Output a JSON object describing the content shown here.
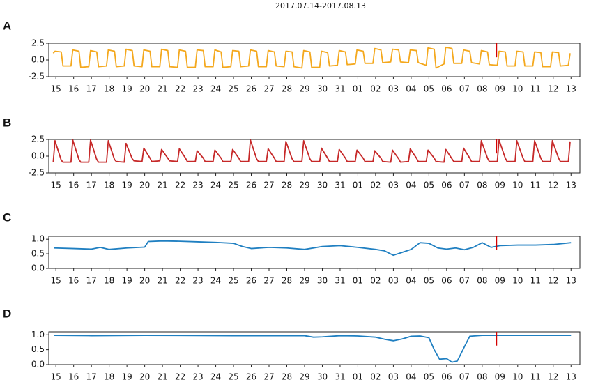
{
  "chart_data": [
    {
      "type": "line",
      "title": "2017.07.14-2017.08.13",
      "label": "A",
      "color": "#f4a81d",
      "marker_x": 24.8,
      "marker_color": "#d40000",
      "xlim": [
        -0.4,
        29.5
      ],
      "ylim": [
        -2.5,
        2.5
      ],
      "yticks": [
        2.5,
        {
          "value": 0,
          "label": "0.0"
        },
        -2.5
      ],
      "xticks": [
        {
          "value": 0,
          "label": "15"
        },
        {
          "value": 1,
          "label": "16"
        },
        {
          "value": 2,
          "label": "17"
        },
        {
          "value": 3,
          "label": "18"
        },
        {
          "value": 4,
          "label": "19"
        },
        {
          "value": 5,
          "label": "20"
        },
        {
          "value": 6,
          "label": "21"
        },
        {
          "value": 7,
          "label": "22"
        },
        {
          "value": 8,
          "label": "23"
        },
        {
          "value": 9,
          "label": "24"
        },
        {
          "value": 10,
          "label": "25"
        },
        {
          "value": 11,
          "label": "26"
        },
        {
          "value": 12,
          "label": "27"
        },
        {
          "value": 13,
          "label": "28"
        },
        {
          "value": 14,
          "label": "29"
        },
        {
          "value": 15,
          "label": "30"
        },
        {
          "value": 16,
          "label": "31"
        },
        {
          "value": 17,
          "label": "01"
        },
        {
          "value": 18,
          "label": "02"
        },
        {
          "value": 19,
          "label": "03"
        },
        {
          "value": 20,
          "label": "04"
        },
        {
          "value": 21,
          "label": "05"
        },
        {
          "value": 22,
          "label": "06"
        },
        {
          "value": 23,
          "label": "07"
        },
        {
          "value": 24,
          "label": "08"
        },
        {
          "value": 25,
          "label": "09"
        },
        {
          "value": 26,
          "label": "10"
        },
        {
          "value": 27,
          "label": "11"
        },
        {
          "value": 28,
          "label": "12"
        },
        {
          "value": 29,
          "label": "13"
        }
      ],
      "x": [
        -0.15,
        -0.05,
        0.3,
        0.4,
        0.85,
        0.95,
        1.3,
        1.4,
        1.85,
        1.95,
        2.3,
        2.4,
        2.85,
        2.95,
        3.3,
        3.4,
        3.85,
        3.95,
        4.3,
        4.4,
        4.85,
        4.95,
        5.3,
        5.4,
        5.85,
        5.95,
        6.3,
        6.4,
        6.85,
        6.95,
        7.3,
        7.4,
        7.85,
        7.95,
        8.3,
        8.4,
        8.85,
        8.95,
        9.3,
        9.4,
        9.85,
        9.95,
        10.3,
        10.4,
        10.85,
        10.95,
        11.3,
        11.4,
        11.85,
        11.95,
        12.3,
        12.4,
        12.85,
        12.95,
        13.3,
        13.4,
        13.85,
        13.95,
        14.3,
        14.4,
        14.85,
        14.95,
        15.3,
        15.4,
        15.85,
        15.95,
        16.3,
        16.4,
        16.85,
        16.95,
        17.3,
        17.4,
        17.85,
        17.95,
        18.3,
        18.4,
        18.85,
        18.95,
        19.3,
        19.4,
        19.85,
        19.95,
        20.3,
        20.4,
        20.85,
        20.95,
        21.3,
        21.4,
        21.85,
        21.95,
        22.3,
        22.4,
        22.85,
        22.95,
        23.3,
        23.4,
        23.85,
        23.95,
        24.3,
        24.4,
        24.85,
        24.95,
        25.3,
        25.4,
        25.85,
        25.95,
        26.3,
        26.4,
        26.85,
        26.95,
        27.3,
        27.4,
        27.85,
        27.95,
        28.3,
        28.4,
        28.85,
        28.95
      ],
      "values": [
        1.0,
        1.3,
        1.2,
        -0.9,
        -0.9,
        1.5,
        1.3,
        -1.1,
        -1.0,
        1.4,
        1.2,
        -1.0,
        -0.9,
        1.5,
        1.3,
        -1.0,
        -0.9,
        1.6,
        1.4,
        -0.9,
        -1.0,
        1.5,
        1.3,
        -1.0,
        -1.0,
        1.6,
        1.4,
        -1.0,
        -1.1,
        1.5,
        1.3,
        -1.1,
        -1.1,
        1.5,
        1.4,
        -1.0,
        -1.0,
        1.5,
        1.2,
        -1.1,
        -1.0,
        1.4,
        1.3,
        -1.0,
        -0.9,
        1.5,
        1.3,
        -1.0,
        -1.0,
        1.4,
        1.2,
        -0.9,
        -1.0,
        1.3,
        1.2,
        -1.0,
        -1.2,
        1.4,
        1.2,
        -1.1,
        -1.1,
        1.3,
        1.1,
        -0.9,
        -0.8,
        1.4,
        1.2,
        -0.7,
        -0.6,
        1.5,
        1.3,
        -0.5,
        -0.5,
        1.7,
        1.5,
        -0.4,
        -0.3,
        1.6,
        1.5,
        -0.3,
        -0.4,
        1.5,
        1.4,
        -0.4,
        -0.8,
        1.8,
        1.6,
        -1.2,
        -0.6,
        1.9,
        1.7,
        -0.5,
        -0.5,
        1.5,
        1.3,
        -0.4,
        -0.6,
        1.4,
        1.2,
        -0.7,
        -0.8,
        1.3,
        1.2,
        -0.9,
        -0.9,
        1.3,
        1.2,
        -0.9,
        -0.9,
        1.2,
        1.1,
        -1.0,
        -1.0,
        1.2,
        1.1,
        -0.9,
        -0.8,
        1.0
      ]
    },
    {
      "type": "line",
      "label": "B",
      "color": "#c62828",
      "marker_x": 24.8,
      "marker_color": "#d40000",
      "xlim": [
        -0.4,
        29.5
      ],
      "ylim": [
        -2.5,
        2.5
      ],
      "yticks": [
        2.5,
        {
          "value": 0,
          "label": "0.0"
        },
        -2.5
      ],
      "xticks": [
        {
          "value": 0,
          "label": "15"
        },
        {
          "value": 1,
          "label": "16"
        },
        {
          "value": 2,
          "label": "17"
        },
        {
          "value": 3,
          "label": "18"
        },
        {
          "value": 4,
          "label": "19"
        },
        {
          "value": 5,
          "label": "20"
        },
        {
          "value": 6,
          "label": "21"
        },
        {
          "value": 7,
          "label": "22"
        },
        {
          "value": 8,
          "label": "23"
        },
        {
          "value": 9,
          "label": "24"
        },
        {
          "value": 10,
          "label": "25"
        },
        {
          "value": 11,
          "label": "26"
        },
        {
          "value": 12,
          "label": "27"
        },
        {
          "value": 13,
          "label": "28"
        },
        {
          "value": 14,
          "label": "29"
        },
        {
          "value": 15,
          "label": "30"
        },
        {
          "value": 16,
          "label": "31"
        },
        {
          "value": 17,
          "label": "01"
        },
        {
          "value": 18,
          "label": "02"
        },
        {
          "value": 19,
          "label": "03"
        },
        {
          "value": 20,
          "label": "04"
        },
        {
          "value": 21,
          "label": "05"
        },
        {
          "value": 22,
          "label": "06"
        },
        {
          "value": 23,
          "label": "07"
        },
        {
          "value": 24,
          "label": "08"
        },
        {
          "value": 25,
          "label": "09"
        },
        {
          "value": 26,
          "label": "10"
        },
        {
          "value": 27,
          "label": "11"
        },
        {
          "value": 28,
          "label": "12"
        },
        {
          "value": 29,
          "label": "13"
        }
      ],
      "x": [
        -0.15,
        -0.05,
        0.3,
        0.4,
        0.85,
        0.95,
        1.3,
        1.4,
        1.85,
        1.95,
        2.3,
        2.4,
        2.85,
        2.95,
        3.3,
        3.4,
        3.85,
        3.95,
        4.3,
        4.4,
        4.85,
        4.95,
        5.3,
        5.4,
        5.85,
        5.95,
        6.3,
        6.4,
        6.85,
        6.95,
        7.3,
        7.4,
        7.85,
        7.95,
        8.3,
        8.4,
        8.85,
        8.95,
        9.3,
        9.4,
        9.85,
        9.95,
        10.3,
        10.4,
        10.85,
        10.95,
        11.3,
        11.4,
        11.85,
        11.95,
        12.3,
        12.4,
        12.85,
        12.95,
        13.3,
        13.4,
        13.85,
        13.95,
        14.3,
        14.4,
        14.85,
        14.95,
        15.3,
        15.4,
        15.85,
        15.95,
        16.3,
        16.4,
        16.85,
        16.95,
        17.3,
        17.4,
        17.85,
        17.95,
        18.3,
        18.4,
        18.85,
        18.95,
        19.3,
        19.4,
        19.85,
        19.95,
        20.3,
        20.4,
        20.85,
        20.95,
        21.3,
        21.4,
        21.85,
        21.95,
        22.3,
        22.4,
        22.85,
        22.95,
        23.3,
        23.4,
        23.85,
        23.95,
        24.3,
        24.4,
        24.85,
        24.95,
        25.3,
        25.4,
        25.85,
        25.95,
        26.3,
        26.4,
        26.85,
        26.95,
        27.3,
        27.4,
        27.85,
        27.95,
        28.3,
        28.4,
        28.85,
        28.95
      ],
      "values": [
        -0.9,
        2.3,
        -0.6,
        -0.9,
        -0.9,
        2.4,
        -0.5,
        -0.9,
        -0.9,
        2.4,
        -0.5,
        -0.9,
        -0.9,
        2.3,
        -0.5,
        -0.8,
        -0.9,
        1.9,
        -0.4,
        -0.7,
        -0.8,
        1.2,
        -0.3,
        -0.8,
        -0.7,
        1.0,
        -0.3,
        -0.7,
        -0.8,
        1.1,
        -0.3,
        -0.8,
        -0.8,
        0.8,
        -0.3,
        -0.8,
        -0.8,
        0.9,
        -0.3,
        -0.8,
        -0.8,
        1.0,
        -0.3,
        -0.8,
        -0.8,
        2.4,
        -0.4,
        -0.8,
        -0.8,
        1.1,
        -0.3,
        -0.8,
        -0.8,
        2.2,
        -0.4,
        -0.8,
        -0.8,
        2.3,
        -0.4,
        -0.8,
        -0.8,
        1.2,
        -0.3,
        -0.8,
        -0.8,
        1.0,
        -0.3,
        -0.8,
        -0.8,
        0.9,
        -0.3,
        -0.8,
        -0.8,
        0.8,
        -0.3,
        -0.8,
        -0.9,
        0.9,
        -0.4,
        -0.9,
        -0.8,
        1.1,
        -0.3,
        -0.8,
        -0.8,
        0.9,
        -0.3,
        -0.8,
        -0.9,
        1.0,
        -0.4,
        -0.8,
        -0.8,
        1.2,
        -0.3,
        -0.8,
        -0.8,
        2.3,
        -0.3,
        -0.8,
        -0.8,
        2.4,
        -0.3,
        -0.8,
        -0.8,
        2.3,
        -0.3,
        -0.8,
        -0.8,
        2.3,
        -0.3,
        -0.8,
        -0.8,
        2.3,
        -0.3,
        -0.8,
        -0.8,
        2.2
      ]
    },
    {
      "type": "line",
      "label": "C",
      "color": "#1f7fc1",
      "marker_x": 24.8,
      "marker_color": "#d40000",
      "xlim": [
        -0.4,
        29.5
      ],
      "ylim": [
        0,
        1.1
      ],
      "yticks": [
        {
          "value": 1,
          "label": "1.0"
        },
        0.5,
        {
          "value": 0,
          "label": "0.0"
        }
      ],
      "xticks": [
        {
          "value": 0,
          "label": "15"
        },
        {
          "value": 1,
          "label": "16"
        },
        {
          "value": 2,
          "label": "17"
        },
        {
          "value": 3,
          "label": "18"
        },
        {
          "value": 4,
          "label": "19"
        },
        {
          "value": 5,
          "label": "20"
        },
        {
          "value": 6,
          "label": "21"
        },
        {
          "value": 7,
          "label": "22"
        },
        {
          "value": 8,
          "label": "23"
        },
        {
          "value": 9,
          "label": "24"
        },
        {
          "value": 10,
          "label": "25"
        },
        {
          "value": 11,
          "label": "26"
        },
        {
          "value": 12,
          "label": "27"
        },
        {
          "value": 13,
          "label": "28"
        },
        {
          "value": 14,
          "label": "29"
        },
        {
          "value": 15,
          "label": "30"
        },
        {
          "value": 16,
          "label": "31"
        },
        {
          "value": 17,
          "label": "01"
        },
        {
          "value": 18,
          "label": "02"
        },
        {
          "value": 19,
          "label": "03"
        },
        {
          "value": 20,
          "label": "04"
        },
        {
          "value": 21,
          "label": "05"
        },
        {
          "value": 22,
          "label": "06"
        },
        {
          "value": 23,
          "label": "07"
        },
        {
          "value": 24,
          "label": "08"
        },
        {
          "value": 25,
          "label": "09"
        },
        {
          "value": 26,
          "label": "10"
        },
        {
          "value": 27,
          "label": "11"
        },
        {
          "value": 28,
          "label": "12"
        },
        {
          "value": 29,
          "label": "13"
        }
      ],
      "x": [
        -0.1,
        1,
        2,
        2.5,
        3,
        4,
        5,
        5.2,
        6,
        7,
        8,
        9,
        10,
        10.5,
        11,
        12,
        13,
        14,
        15,
        16,
        17,
        18,
        18.5,
        19,
        19.5,
        20,
        20.5,
        21,
        21.5,
        22,
        22.5,
        23,
        23.5,
        24,
        24.5,
        25,
        26,
        27,
        28,
        29
      ],
      "values": [
        0.7,
        0.68,
        0.66,
        0.72,
        0.65,
        0.7,
        0.73,
        0.92,
        0.94,
        0.93,
        0.91,
        0.89,
        0.86,
        0.75,
        0.68,
        0.72,
        0.7,
        0.65,
        0.75,
        0.78,
        0.72,
        0.65,
        0.6,
        0.45,
        0.55,
        0.65,
        0.88,
        0.86,
        0.7,
        0.66,
        0.7,
        0.64,
        0.72,
        0.88,
        0.72,
        0.78,
        0.8,
        0.8,
        0.82,
        0.88
      ]
    },
    {
      "type": "line",
      "label": "D",
      "color": "#1f7fc1",
      "marker_x": 24.8,
      "marker_color": "#d40000",
      "xlim": [
        -0.4,
        29.5
      ],
      "ylim": [
        0,
        1.1
      ],
      "yticks": [
        {
          "value": 1,
          "label": "1.0"
        },
        0.5,
        {
          "value": 0,
          "label": "0.0"
        }
      ],
      "xticks": [
        {
          "value": 0,
          "label": "15"
        },
        {
          "value": 1,
          "label": "16"
        },
        {
          "value": 2,
          "label": "17"
        },
        {
          "value": 3,
          "label": "18"
        },
        {
          "value": 4,
          "label": "19"
        },
        {
          "value": 5,
          "label": "20"
        },
        {
          "value": 6,
          "label": "21"
        },
        {
          "value": 7,
          "label": "22"
        },
        {
          "value": 8,
          "label": "23"
        },
        {
          "value": 9,
          "label": "24"
        },
        {
          "value": 10,
          "label": "25"
        },
        {
          "value": 11,
          "label": "26"
        },
        {
          "value": 12,
          "label": "27"
        },
        {
          "value": 13,
          "label": "28"
        },
        {
          "value": 14,
          "label": "29"
        },
        {
          "value": 15,
          "label": "30"
        },
        {
          "value": 16,
          "label": "31"
        },
        {
          "value": 17,
          "label": "01"
        },
        {
          "value": 18,
          "label": "02"
        },
        {
          "value": 19,
          "label": "03"
        },
        {
          "value": 20,
          "label": "04"
        },
        {
          "value": 21,
          "label": "05"
        },
        {
          "value": 22,
          "label": "06"
        },
        {
          "value": 23,
          "label": "07"
        },
        {
          "value": 24,
          "label": "08"
        },
        {
          "value": 25,
          "label": "09"
        },
        {
          "value": 26,
          "label": "10"
        },
        {
          "value": 27,
          "label": "11"
        },
        {
          "value": 28,
          "label": "12"
        },
        {
          "value": 29,
          "label": "13"
        }
      ],
      "x": [
        -0.1,
        2,
        5,
        10,
        14,
        14.5,
        15,
        16,
        17,
        18,
        18.5,
        19,
        19.5,
        20,
        20.5,
        21,
        21.3,
        21.6,
        22,
        22.3,
        22.6,
        23,
        23.3,
        24,
        26,
        29
      ],
      "values": [
        0.98,
        0.97,
        0.98,
        0.97,
        0.97,
        0.92,
        0.93,
        0.97,
        0.96,
        0.92,
        0.85,
        0.8,
        0.86,
        0.95,
        0.96,
        0.9,
        0.5,
        0.18,
        0.2,
        0.08,
        0.12,
        0.6,
        0.95,
        0.98,
        0.98,
        0.98
      ]
    }
  ]
}
